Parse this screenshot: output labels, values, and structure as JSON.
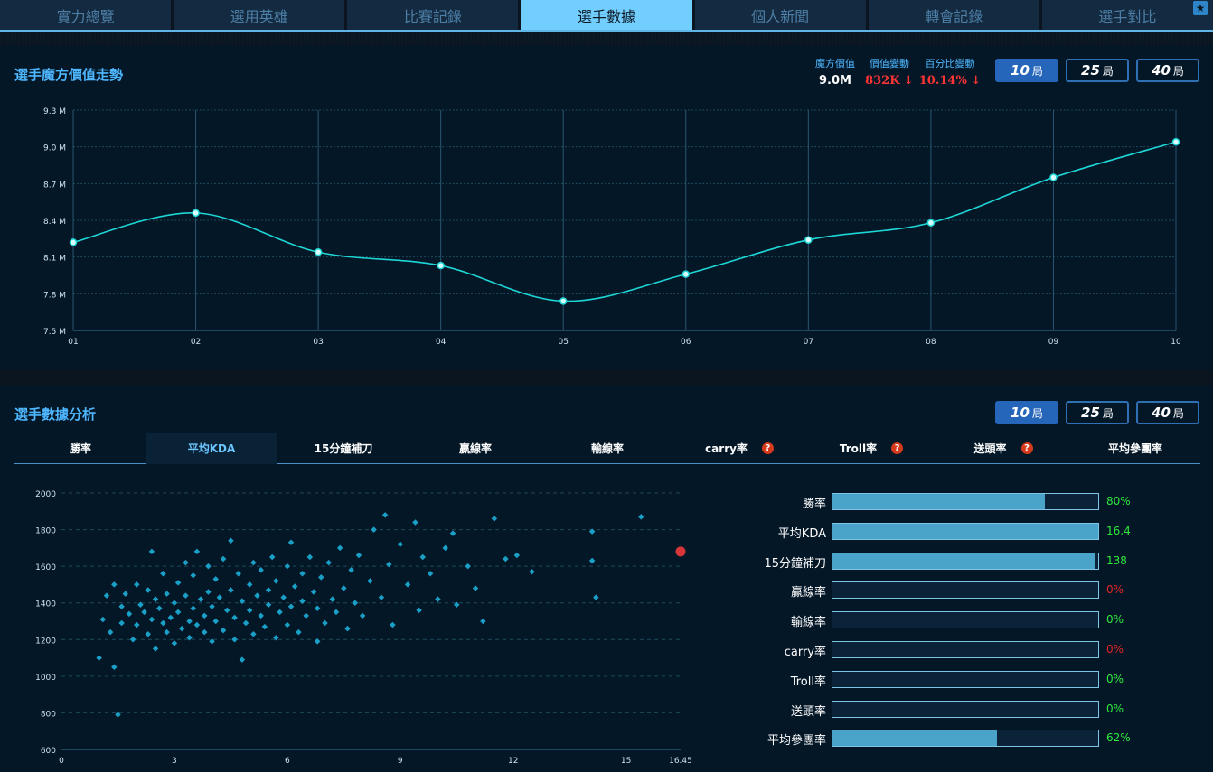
{
  "nav": {
    "tabs": [
      {
        "label": "實力總覽"
      },
      {
        "label": "選用英雄"
      },
      {
        "label": "比賽記錄"
      },
      {
        "label": "選手數據"
      },
      {
        "label": "個人新聞"
      },
      {
        "label": "轉會記錄"
      },
      {
        "label": "選手對比"
      }
    ],
    "active_index": 3,
    "corner_icon": "star-icon"
  },
  "value_panel": {
    "title": "選手魔方價值走勢",
    "stats": {
      "cube_value_label": "魔方價值",
      "cube_value": "9.0M",
      "value_change_label": "價值變動",
      "value_change": "832K",
      "percent_change_label": "百分比變動",
      "percent_change": "10.14%",
      "change_icon": "arrow-down-icon"
    },
    "range_buttons": [
      {
        "num": "10",
        "unit": "局",
        "active": true
      },
      {
        "num": "25",
        "unit": "局",
        "active": false
      },
      {
        "num": "40",
        "unit": "局",
        "active": false
      }
    ]
  },
  "analysis_panel": {
    "title": "選手數據分析",
    "range_buttons": [
      {
        "num": "10",
        "unit": "局",
        "active": true
      },
      {
        "num": "25",
        "unit": "局",
        "active": false
      },
      {
        "num": "40",
        "unit": "局",
        "active": false
      }
    ],
    "subtabs": [
      {
        "label": "勝率",
        "help": false
      },
      {
        "label": "平均KDA",
        "help": false
      },
      {
        "label": "15分鐘補刀",
        "help": false
      },
      {
        "label": "贏線率",
        "help": false
      },
      {
        "label": "輸線率",
        "help": false
      },
      {
        "label": "carry率",
        "help": true
      },
      {
        "label": "Troll率",
        "help": true
      },
      {
        "label": "送頭率",
        "help": true
      },
      {
        "label": "平均參團率",
        "help": false
      }
    ],
    "active_subtab": 1,
    "help_icon": "question-icon",
    "metrics": [
      {
        "label": "勝率",
        "value": "80%",
        "fill": 0.8,
        "status": "green"
      },
      {
        "label": "平均KDA",
        "value": "16.4",
        "fill": 1.0,
        "status": "green"
      },
      {
        "label": "15分鐘補刀",
        "value": "138",
        "fill": 0.99,
        "status": "green"
      },
      {
        "label": "贏線率",
        "value": "0%",
        "fill": 0,
        "status": "red"
      },
      {
        "label": "輸線率",
        "value": "0%",
        "fill": 0,
        "status": "green"
      },
      {
        "label": "carry率",
        "value": "0%",
        "fill": 0,
        "status": "red"
      },
      {
        "label": "Troll率",
        "value": "0%",
        "fill": 0,
        "status": "green"
      },
      {
        "label": "送頭率",
        "value": "0%",
        "fill": 0,
        "status": "green"
      },
      {
        "label": "平均參團率",
        "value": "62%",
        "fill": 0.62,
        "status": "green"
      }
    ]
  },
  "colors": {
    "accent": "#4fb7ff",
    "line": "#1ed6d6",
    "scatter": "#1a9fc6",
    "highlight": "#d9363a",
    "up_green": "#2ee83e",
    "down_red": "#ff3434"
  },
  "chart_data": [
    {
      "type": "line",
      "title": "選手魔方價值走勢",
      "x": [
        "01",
        "02",
        "03",
        "04",
        "05",
        "06",
        "07",
        "08",
        "09",
        "10"
      ],
      "values": [
        8.22,
        8.46,
        8.14,
        8.03,
        7.74,
        7.96,
        8.24,
        8.38,
        8.75,
        9.04
      ],
      "ylim": [
        7.5,
        9.3
      ],
      "yticks": [
        "7.5 M",
        "7.8 M",
        "8.1 M",
        "8.4 M",
        "8.7 M",
        "9.0 M",
        "9.3 M"
      ],
      "ytick_values": [
        7.5,
        7.8,
        8.1,
        8.4,
        8.7,
        9.0,
        9.3
      ],
      "grid": true
    },
    {
      "type": "scatter",
      "xlim": [
        0,
        16.45
      ],
      "ylim": [
        600,
        2000
      ],
      "xticks": [
        "0",
        "3",
        "6",
        "9",
        "12",
        "15",
        "16.45"
      ],
      "xtick_values": [
        0,
        3,
        6,
        9,
        12,
        15,
        16.45
      ],
      "yticks": [
        "600",
        "800",
        "1000",
        "1200",
        "1400",
        "1600",
        "1800",
        "2000"
      ],
      "ytick_values": [
        600,
        800,
        1000,
        1200,
        1400,
        1600,
        1800,
        2000
      ],
      "grid": true,
      "highlight_point": {
        "x": 16.45,
        "y": 1680
      },
      "series": [
        {
          "points": [
            [
              1.0,
              1100
            ],
            [
              1.1,
              1310
            ],
            [
              1.2,
              1440
            ],
            [
              1.3,
              1240
            ],
            [
              1.4,
              1050
            ],
            [
              1.4,
              1500
            ],
            [
              1.5,
              790
            ],
            [
              1.6,
              1290
            ],
            [
              1.6,
              1380
            ],
            [
              1.7,
              1450
            ],
            [
              1.8,
              1340
            ],
            [
              1.9,
              1200
            ],
            [
              2.0,
              1500
            ],
            [
              2.0,
              1280
            ],
            [
              2.1,
              1390
            ],
            [
              2.2,
              1350
            ],
            [
              2.3,
              1470
            ],
            [
              2.3,
              1230
            ],
            [
              2.4,
              1680
            ],
            [
              2.4,
              1310
            ],
            [
              2.5,
              1420
            ],
            [
              2.5,
              1150
            ],
            [
              2.6,
              1370
            ],
            [
              2.7,
              1290
            ],
            [
              2.7,
              1560
            ],
            [
              2.8,
              1450
            ],
            [
              2.8,
              1240
            ],
            [
              2.9,
              1320
            ],
            [
              3.0,
              1400
            ],
            [
              3.0,
              1180
            ],
            [
              3.1,
              1510
            ],
            [
              3.1,
              1350
            ],
            [
              3.2,
              1260
            ],
            [
              3.3,
              1620
            ],
            [
              3.3,
              1440
            ],
            [
              3.4,
              1300
            ],
            [
              3.4,
              1210
            ],
            [
              3.5,
              1370
            ],
            [
              3.5,
              1550
            ],
            [
              3.6,
              1280
            ],
            [
              3.6,
              1680
            ],
            [
              3.7,
              1420
            ],
            [
              3.8,
              1330
            ],
            [
              3.8,
              1240
            ],
            [
              3.9,
              1460
            ],
            [
              3.9,
              1600
            ],
            [
              4.0,
              1380
            ],
            [
              4.0,
              1190
            ],
            [
              4.1,
              1530
            ],
            [
              4.1,
              1300
            ],
            [
              4.2,
              1430
            ],
            [
              4.3,
              1250
            ],
            [
              4.3,
              1640
            ],
            [
              4.4,
              1360
            ],
            [
              4.5,
              1740
            ],
            [
              4.5,
              1470
            ],
            [
              4.6,
              1200
            ],
            [
              4.6,
              1320
            ],
            [
              4.7,
              1560
            ],
            [
              4.8,
              1410
            ],
            [
              4.8,
              1090
            ],
            [
              4.9,
              1290
            ],
            [
              5.0,
              1500
            ],
            [
              5.0,
              1360
            ],
            [
              5.1,
              1620
            ],
            [
              5.1,
              1230
            ],
            [
              5.2,
              1440
            ],
            [
              5.3,
              1330
            ],
            [
              5.3,
              1580
            ],
            [
              5.4,
              1270
            ],
            [
              5.5,
              1470
            ],
            [
              5.5,
              1390
            ],
            [
              5.6,
              1650
            ],
            [
              5.7,
              1210
            ],
            [
              5.7,
              1520
            ],
            [
              5.8,
              1350
            ],
            [
              5.9,
              1430
            ],
            [
              6.0,
              1280
            ],
            [
              6.0,
              1600
            ],
            [
              6.1,
              1730
            ],
            [
              6.1,
              1380
            ],
            [
              6.2,
              1490
            ],
            [
              6.3,
              1240
            ],
            [
              6.4,
              1560
            ],
            [
              6.4,
              1410
            ],
            [
              6.5,
              1330
            ],
            [
              6.6,
              1650
            ],
            [
              6.7,
              1460
            ],
            [
              6.8,
              1190
            ],
            [
              6.8,
              1370
            ],
            [
              6.9,
              1540
            ],
            [
              7.0,
              1290
            ],
            [
              7.1,
              1620
            ],
            [
              7.2,
              1420
            ],
            [
              7.3,
              1350
            ],
            [
              7.4,
              1700
            ],
            [
              7.5,
              1480
            ],
            [
              7.6,
              1260
            ],
            [
              7.7,
              1580
            ],
            [
              7.8,
              1400
            ],
            [
              7.9,
              1660
            ],
            [
              8.0,
              1330
            ],
            [
              8.2,
              1520
            ],
            [
              8.3,
              1800
            ],
            [
              8.5,
              1430
            ],
            [
              8.6,
              1880
            ],
            [
              8.7,
              1610
            ],
            [
              8.8,
              1280
            ],
            [
              9.0,
              1720
            ],
            [
              9.2,
              1500
            ],
            [
              9.4,
              1840
            ],
            [
              9.5,
              1360
            ],
            [
              9.6,
              1650
            ],
            [
              9.8,
              1560
            ],
            [
              10.0,
              1420
            ],
            [
              10.2,
              1700
            ],
            [
              10.4,
              1780
            ],
            [
              10.5,
              1390
            ],
            [
              10.8,
              1600
            ],
            [
              11.0,
              1480
            ],
            [
              11.2,
              1300
            ],
            [
              11.5,
              1860
            ],
            [
              11.8,
              1640
            ],
            [
              12.1,
              1660
            ],
            [
              12.5,
              1570
            ],
            [
              14.1,
              1790
            ],
            [
              14.1,
              1630
            ],
            [
              14.2,
              1430
            ],
            [
              15.4,
              1870
            ]
          ]
        }
      ]
    }
  ]
}
